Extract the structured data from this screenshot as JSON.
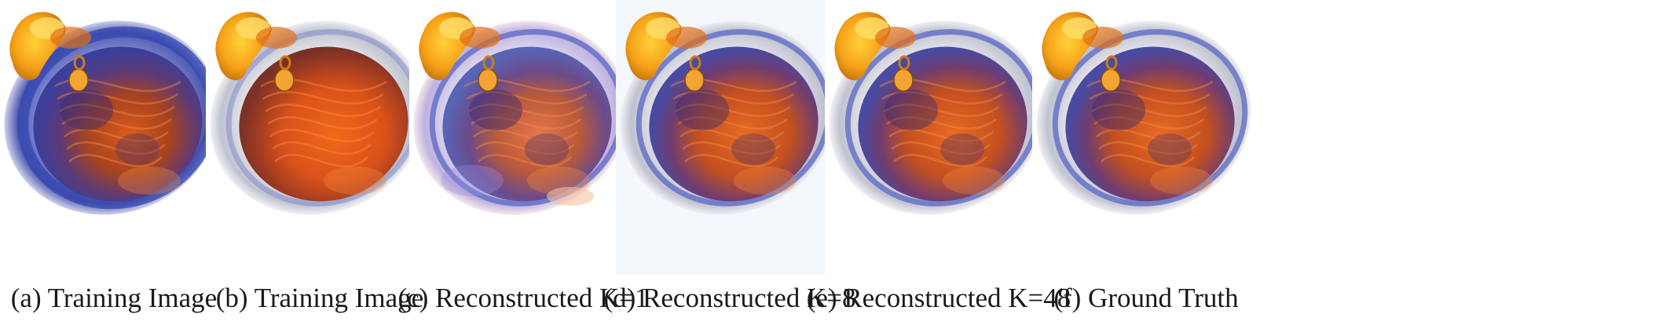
{
  "figure": {
    "panels": [
      {
        "caption": "(a) Training Image",
        "variant": "bluish",
        "bg": "#ffffff"
      },
      {
        "caption": "(b) Training Image",
        "variant": "orange",
        "bg": "#ffffff"
      },
      {
        "caption": "(c) Reconstructed K=1",
        "variant": "noisy",
        "bg": "#ffffff"
      },
      {
        "caption": "(d) Reconstructed K=8",
        "variant": "mixed",
        "bg": "#f4f8fc"
      },
      {
        "caption": "(e) Reconstructed K=48",
        "variant": "mixed",
        "bg": "#ffffff"
      },
      {
        "caption": "(f) Ground Truth",
        "variant": "mixed",
        "bg": "#ffffff"
      }
    ]
  }
}
